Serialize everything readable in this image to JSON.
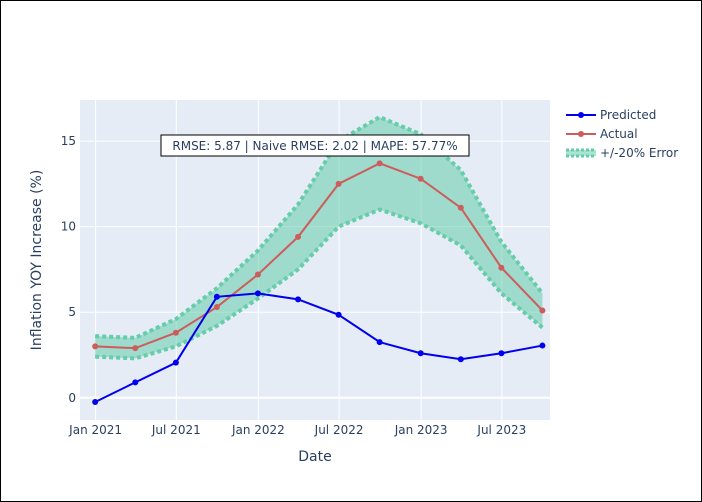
{
  "chart_data": {
    "type": "line",
    "title": "",
    "xlabel": "Date",
    "ylabel": "Inflation YOY Increase (%)",
    "x_tick_labels": [
      "Jan 2021",
      "Jul 2021",
      "Jan 2022",
      "Jul 2022",
      "Jan 2023",
      "Jul 2023"
    ],
    "y_ticks": [
      0,
      5,
      10,
      15
    ],
    "y_tick_labels": [
      "0",
      "5",
      "10",
      "15"
    ],
    "xlim": [
      "2020-11-27",
      "2023-10-17"
    ],
    "ylim": [
      -1.3,
      17.4
    ],
    "grid": true,
    "legend_position": "right",
    "x": [
      "2020-12-31",
      "2021-03-31",
      "2021-06-30",
      "2021-09-30",
      "2021-12-31",
      "2022-03-31",
      "2022-06-30",
      "2022-09-30",
      "2022-12-31",
      "2023-03-31",
      "2023-06-30",
      "2023-09-30"
    ],
    "series": [
      {
        "name": "Predicted",
        "color": "#0000ee",
        "style": "lines+markers",
        "values": [
          -0.25,
          0.9,
          2.05,
          5.9,
          6.1,
          5.75,
          4.85,
          3.25,
          2.6,
          2.25,
          2.6,
          3.05
        ]
      },
      {
        "name": "Actual",
        "color": "#cd5c5c",
        "style": "lines+markers",
        "values": [
          3.0,
          2.9,
          3.8,
          5.3,
          7.2,
          9.4,
          12.5,
          13.7,
          12.8,
          11.1,
          7.6,
          5.1
        ]
      },
      {
        "name": "+/-20% Error",
        "color": "#66cdaa",
        "style": "band-dotted",
        "upper": [
          3.6,
          3.5,
          4.6,
          6.4,
          8.6,
          11.3,
          15.0,
          16.4,
          15.4,
          13.3,
          9.1,
          6.1
        ],
        "lower": [
          2.4,
          2.3,
          3.0,
          4.2,
          5.8,
          7.5,
          10.0,
          11.0,
          10.2,
          8.9,
          6.1,
          4.1
        ]
      }
    ],
    "annotation": "RMSE: 5.87 | Naive RMSE: 2.02 | MAPE: 57.77%"
  }
}
